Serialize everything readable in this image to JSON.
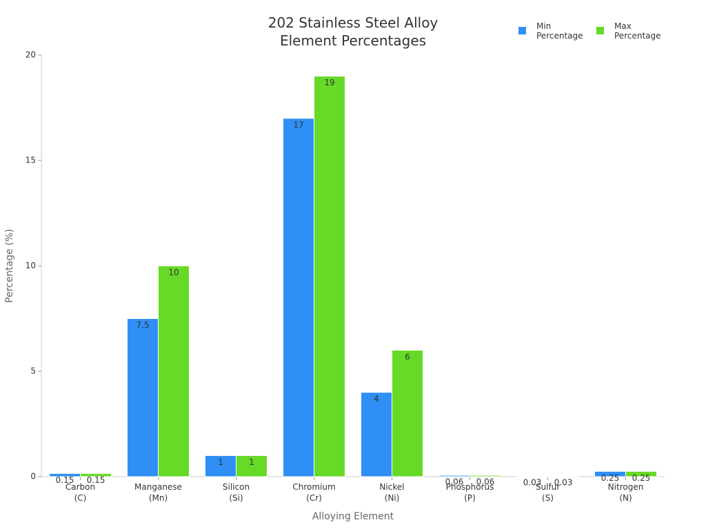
{
  "chart_data": {
    "type": "bar",
    "title": "202 Stainless Steel Alloy Element Percentages",
    "x_label": "Alloying Element",
    "y_label": "Percentage (%)",
    "categories": [
      "Carbon (C)",
      "Manganese (Mn)",
      "Silicon (Si)",
      "Chromium (Cr)",
      "Nickel (Ni)",
      "Phosphorus (P)",
      "Sulfur (S)",
      "Nitrogen (N)"
    ],
    "series": [
      {
        "name": "Min Percentage",
        "color": "#2f8ff5",
        "values": [
          0.15,
          7.5,
          1,
          17,
          4,
          0.06,
          0.03,
          0.25
        ]
      },
      {
        "name": "Max Percentage",
        "color": "#66da26",
        "values": [
          0.15,
          10,
          1,
          19,
          6,
          0.06,
          0.03,
          0.25
        ]
      }
    ],
    "ylim": [
      0,
      20
    ],
    "yticks": [
      0,
      5,
      10,
      15,
      20
    ],
    "legend": "top-right"
  }
}
